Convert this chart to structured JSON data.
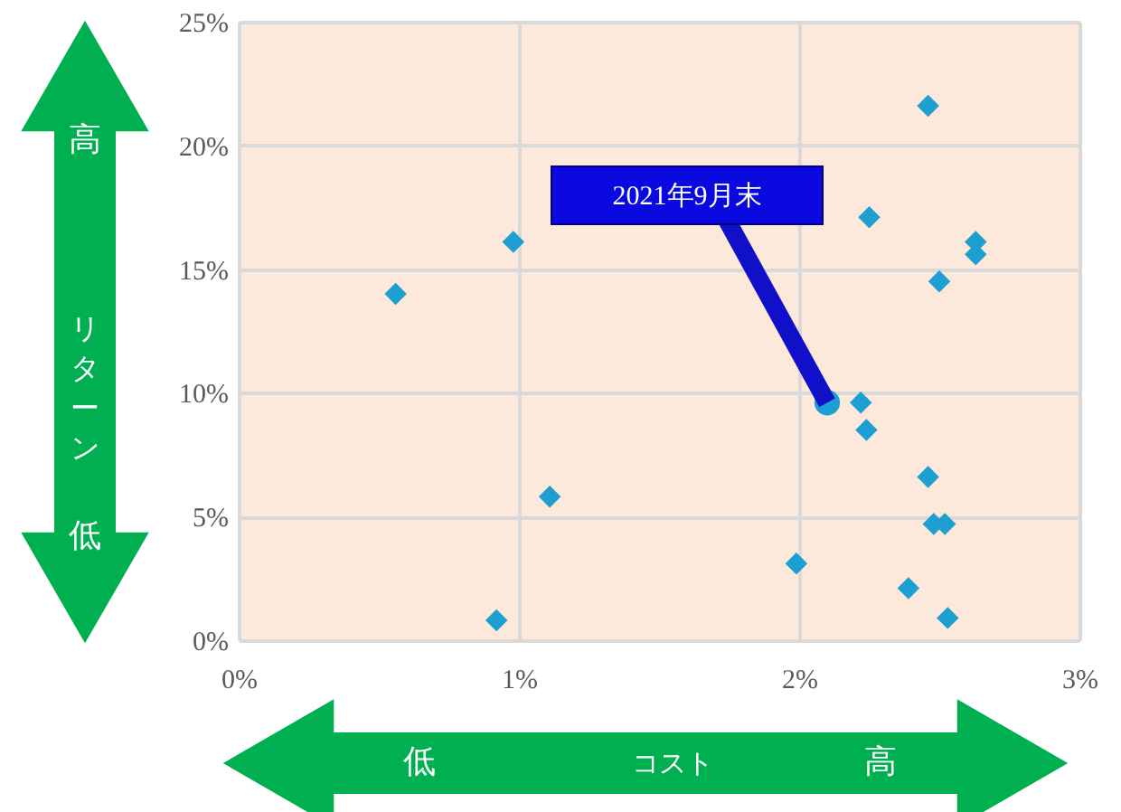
{
  "chart_data": {
    "type": "scatter",
    "xlabel": "コスト",
    "ylabel": "リターン",
    "xlim": [
      0,
      3
    ],
    "ylim": [
      0,
      25
    ],
    "xticks": [
      {
        "value": 0,
        "label": "0%"
      },
      {
        "value": 1,
        "label": "1%"
      },
      {
        "value": 2,
        "label": "2%"
      },
      {
        "value": 3,
        "label": "3%"
      }
    ],
    "yticks": [
      {
        "value": 0,
        "label": "0%"
      },
      {
        "value": 5,
        "label": "5%"
      },
      {
        "value": 10,
        "label": "10%"
      },
      {
        "value": 15,
        "label": "15%"
      },
      {
        "value": 20,
        "label": "20%"
      },
      {
        "value": 25,
        "label": "25%"
      }
    ],
    "grid": true,
    "series": [
      {
        "color": "#1e9fd2",
        "marker": "diamond",
        "x": [
          0.56,
          0.98,
          1.11,
          0.92,
          1.99,
          2.22,
          2.24,
          2.25,
          2.46,
          2.5,
          2.63,
          2.63,
          2.46,
          2.48,
          2.52,
          2.39,
          2.53
        ],
        "values": [
          14.0,
          16.1,
          5.8,
          0.8,
          3.1,
          9.6,
          8.5,
          17.1,
          21.6,
          14.5,
          16.1,
          15.6,
          6.6,
          4.7,
          4.7,
          2.1,
          0.9
        ]
      },
      {
        "color": "#1e9fd2",
        "marker": "circle",
        "x": [
          2.1
        ],
        "values": [
          9.6
        ]
      }
    ],
    "annotations": [
      {
        "text": "2021年9月末",
        "x": 2.1,
        "y": 9.6
      },
      "高",
      "低",
      "低",
      "高"
    ]
  }
}
